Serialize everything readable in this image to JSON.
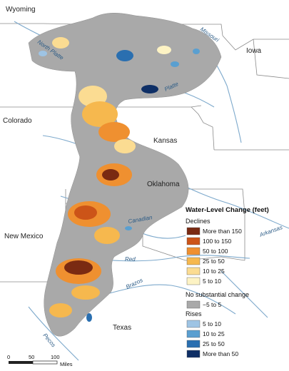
{
  "map": {
    "states": [
      "Wyoming",
      "Iowa",
      "Colorado",
      "Kansas",
      "Oklahoma",
      "New Mexico",
      "Texas"
    ],
    "rivers": [
      "North Platte",
      "Missouri",
      "Platte",
      "Canadian",
      "Arkansas",
      "Red",
      "Brazos",
      "Pecos"
    ]
  },
  "legend": {
    "title": "Water-Level Change (feet)",
    "declines_heading": "Declines",
    "declines": [
      {
        "label": "More than 150",
        "color": "#7a2a12"
      },
      {
        "label": "100 to 150",
        "color": "#cc5418"
      },
      {
        "label": "50 to 100",
        "color": "#ef9030"
      },
      {
        "label": "25 to 50",
        "color": "#f6b84e"
      },
      {
        "label": "10 to 25",
        "color": "#fbdc92"
      },
      {
        "label": "5 to 10",
        "color": "#fdf3c4"
      }
    ],
    "no_change_heading": "No substantial change",
    "no_change": {
      "label": "−5 to 5",
      "color": "#a9a9a9"
    },
    "rises_heading": "Rises",
    "rises": [
      {
        "label": "5 to 10",
        "color": "#9ec4e4"
      },
      {
        "label": "10 to 25",
        "color": "#5a9fd0"
      },
      {
        "label": "25 to 50",
        "color": "#2a6fb0"
      },
      {
        "label": "More than 50",
        "color": "#0e2f66"
      }
    ]
  },
  "scale_bar": {
    "ticks": [
      "0",
      "50",
      "100"
    ],
    "unit": "Miles"
  }
}
